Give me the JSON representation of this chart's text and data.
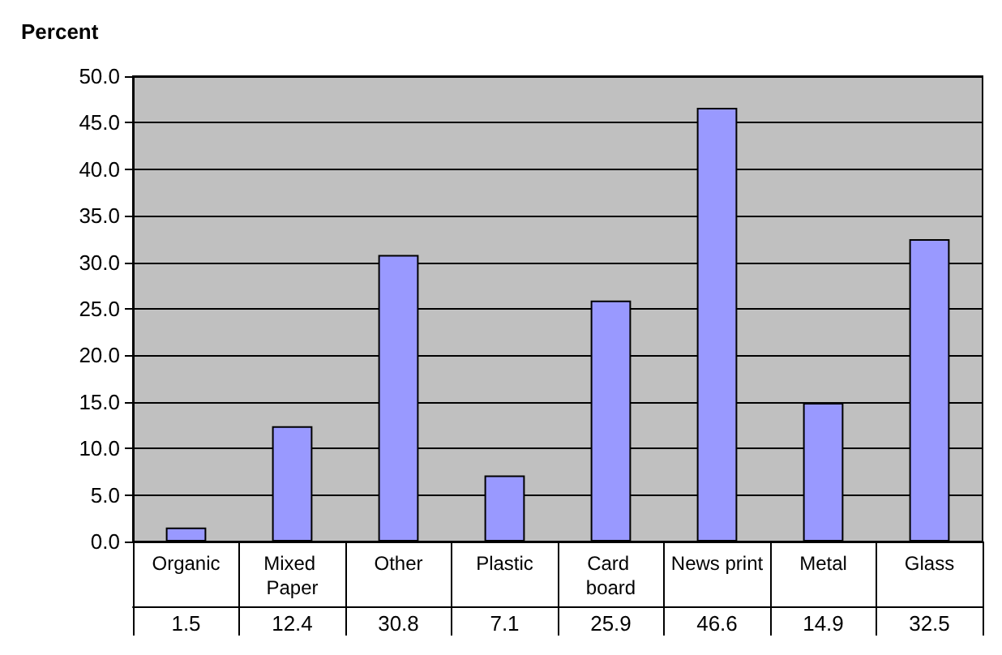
{
  "chart_data": {
    "type": "bar",
    "ylabel": "Percent",
    "categories": [
      "Organic",
      "Mixed Paper",
      "Other",
      "Plastic",
      "Card board",
      "News print",
      "Metal",
      "Glass"
    ],
    "series": [
      {
        "color": "#9999ff",
        "values": [
          1.5,
          12.4,
          30.8,
          7.1,
          25.9,
          46.6,
          14.9,
          32.5
        ]
      }
    ],
    "ylim": [
      0,
      50
    ],
    "yticks": [
      {
        "value": 0,
        "label": "0.0"
      },
      {
        "value": 5,
        "label": "5.0"
      },
      {
        "value": 10,
        "label": "10.0"
      },
      {
        "value": 15,
        "label": "15.0"
      },
      {
        "value": 20,
        "label": "20.0"
      },
      {
        "value": 25,
        "label": "25.0"
      },
      {
        "value": 30,
        "label": "30.0"
      },
      {
        "value": 35,
        "label": "35.0"
      },
      {
        "value": 40,
        "label": "40.0"
      },
      {
        "value": 45,
        "label": "45.0"
      },
      {
        "value": 50,
        "label": "50.0"
      }
    ],
    "grid": "y",
    "data_labels": true
  }
}
